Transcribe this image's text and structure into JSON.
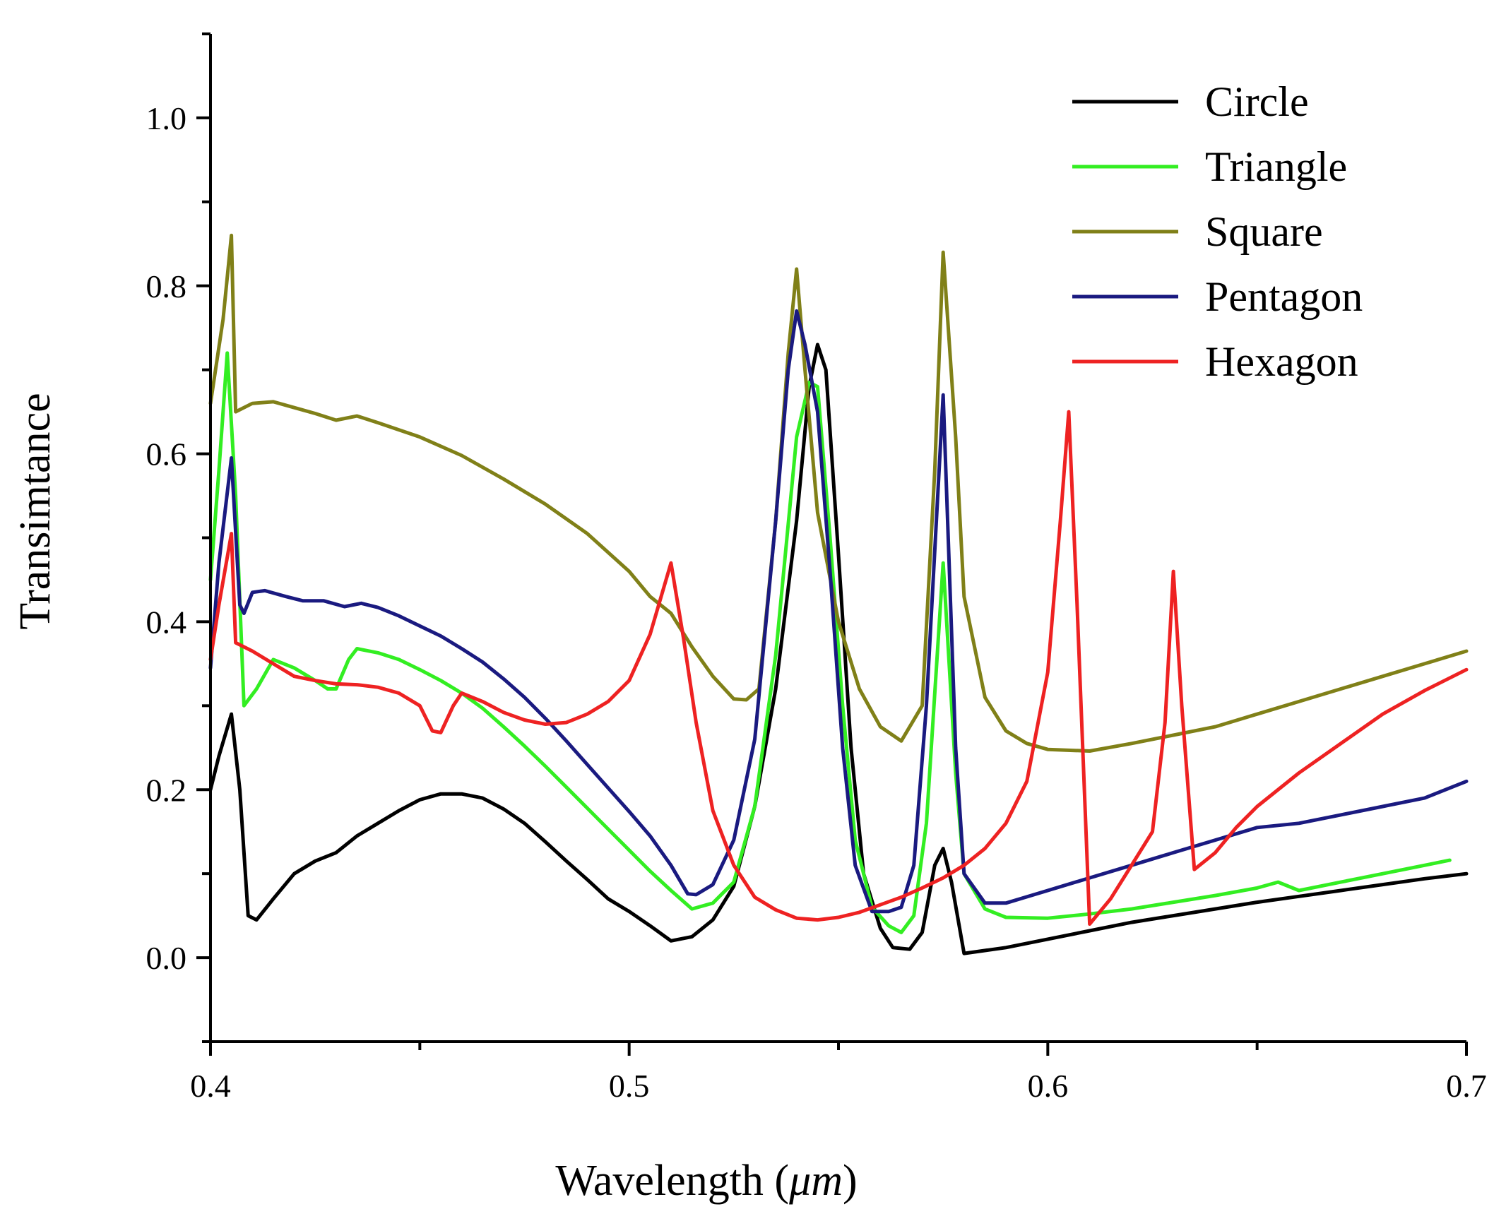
{
  "chart_data": {
    "type": "line",
    "title": "",
    "xlabel_main": "Wavelength (",
    "xlabel_unit": "μm",
    "xlabel_close": ")",
    "ylabel": "Transimtance",
    "xlim": [
      0.4,
      0.7
    ],
    "ylim": [
      -0.1,
      1.1
    ],
    "x_ticks": [
      0.4,
      0.5,
      0.6,
      0.7
    ],
    "x_tick_labels": [
      "0.4",
      "0.5",
      "0.6",
      "0.7"
    ],
    "x_minor_ticks": [
      0.45,
      0.55,
      0.65
    ],
    "y_ticks": [
      0.0,
      0.2,
      0.4,
      0.6,
      0.8,
      1.0
    ],
    "y_tick_labels": [
      "0.0",
      "0.2",
      "0.4",
      "0.6",
      "0.8",
      "1.0"
    ],
    "y_minor_ticks": [
      -0.1,
      0.1,
      0.3,
      0.5,
      0.7,
      0.9,
      1.1
    ],
    "legend_position": "top-right",
    "series": [
      {
        "name": "Circle",
        "color": "#000000",
        "points": [
          [
            0.4,
            0.2
          ],
          [
            0.402,
            0.24
          ],
          [
            0.405,
            0.29
          ],
          [
            0.407,
            0.2
          ],
          [
            0.409,
            0.05
          ],
          [
            0.411,
            0.045
          ],
          [
            0.415,
            0.07
          ],
          [
            0.42,
            0.1
          ],
          [
            0.425,
            0.115
          ],
          [
            0.43,
            0.125
          ],
          [
            0.435,
            0.145
          ],
          [
            0.44,
            0.16
          ],
          [
            0.445,
            0.175
          ],
          [
            0.45,
            0.188
          ],
          [
            0.455,
            0.195
          ],
          [
            0.46,
            0.195
          ],
          [
            0.465,
            0.19
          ],
          [
            0.47,
            0.177
          ],
          [
            0.475,
            0.16
          ],
          [
            0.48,
            0.138
          ],
          [
            0.485,
            0.115
          ],
          [
            0.49,
            0.093
          ],
          [
            0.495,
            0.07
          ],
          [
            0.5,
            0.055
          ],
          [
            0.505,
            0.038
          ],
          [
            0.51,
            0.02
          ],
          [
            0.515,
            0.025
          ],
          [
            0.52,
            0.045
          ],
          [
            0.525,
            0.085
          ],
          [
            0.53,
            0.18
          ],
          [
            0.535,
            0.32
          ],
          [
            0.54,
            0.52
          ],
          [
            0.543,
            0.68
          ],
          [
            0.545,
            0.73
          ],
          [
            0.547,
            0.7
          ],
          [
            0.55,
            0.48
          ],
          [
            0.553,
            0.25
          ],
          [
            0.556,
            0.1
          ],
          [
            0.56,
            0.035
          ],
          [
            0.563,
            0.012
          ],
          [
            0.567,
            0.01
          ],
          [
            0.57,
            0.03
          ],
          [
            0.573,
            0.11
          ],
          [
            0.575,
            0.13
          ],
          [
            0.577,
            0.09
          ],
          [
            0.58,
            0.005
          ],
          [
            0.59,
            0.012
          ],
          [
            0.6,
            0.022
          ],
          [
            0.61,
            0.032
          ],
          [
            0.62,
            0.042
          ],
          [
            0.63,
            0.05
          ],
          [
            0.64,
            0.058
          ],
          [
            0.65,
            0.066
          ],
          [
            0.66,
            0.073
          ],
          [
            0.67,
            0.08
          ],
          [
            0.68,
            0.087
          ],
          [
            0.69,
            0.094
          ],
          [
            0.7,
            0.1
          ]
        ]
      },
      {
        "name": "Triangle",
        "color": "#33ee22",
        "points": [
          [
            0.4,
            0.45
          ],
          [
            0.402,
            0.58
          ],
          [
            0.404,
            0.72
          ],
          [
            0.406,
            0.55
          ],
          [
            0.408,
            0.3
          ],
          [
            0.411,
            0.32
          ],
          [
            0.415,
            0.355
          ],
          [
            0.42,
            0.345
          ],
          [
            0.425,
            0.33
          ],
          [
            0.428,
            0.32
          ],
          [
            0.43,
            0.32
          ],
          [
            0.433,
            0.355
          ],
          [
            0.435,
            0.368
          ],
          [
            0.44,
            0.363
          ],
          [
            0.445,
            0.355
          ],
          [
            0.45,
            0.343
          ],
          [
            0.455,
            0.33
          ],
          [
            0.46,
            0.315
          ],
          [
            0.465,
            0.297
          ],
          [
            0.47,
            0.275
          ],
          [
            0.475,
            0.252
          ],
          [
            0.48,
            0.228
          ],
          [
            0.485,
            0.203
          ],
          [
            0.49,
            0.178
          ],
          [
            0.495,
            0.153
          ],
          [
            0.5,
            0.128
          ],
          [
            0.505,
            0.103
          ],
          [
            0.51,
            0.08
          ],
          [
            0.515,
            0.058
          ],
          [
            0.52,
            0.065
          ],
          [
            0.525,
            0.09
          ],
          [
            0.53,
            0.18
          ],
          [
            0.535,
            0.36
          ],
          [
            0.54,
            0.62
          ],
          [
            0.543,
            0.685
          ],
          [
            0.545,
            0.68
          ],
          [
            0.548,
            0.5
          ],
          [
            0.551,
            0.3
          ],
          [
            0.554,
            0.14
          ],
          [
            0.558,
            0.06
          ],
          [
            0.562,
            0.038
          ],
          [
            0.565,
            0.03
          ],
          [
            0.568,
            0.05
          ],
          [
            0.571,
            0.16
          ],
          [
            0.575,
            0.47
          ],
          [
            0.578,
            0.22
          ],
          [
            0.58,
            0.1
          ],
          [
            0.585,
            0.058
          ],
          [
            0.59,
            0.048
          ],
          [
            0.6,
            0.047
          ],
          [
            0.61,
            0.052
          ],
          [
            0.62,
            0.058
          ],
          [
            0.63,
            0.066
          ],
          [
            0.64,
            0.074
          ],
          [
            0.65,
            0.083
          ],
          [
            0.655,
            0.09
          ],
          [
            0.66,
            0.08
          ],
          [
            0.67,
            0.09
          ],
          [
            0.68,
            0.1
          ],
          [
            0.69,
            0.11
          ],
          [
            0.696,
            0.116
          ]
        ]
      },
      {
        "name": "Square",
        "color": "#808018",
        "points": [
          [
            0.4,
            0.66
          ],
          [
            0.403,
            0.76
          ],
          [
            0.405,
            0.86
          ],
          [
            0.406,
            0.65
          ],
          [
            0.41,
            0.66
          ],
          [
            0.415,
            0.662
          ],
          [
            0.42,
            0.655
          ],
          [
            0.425,
            0.648
          ],
          [
            0.43,
            0.64
          ],
          [
            0.435,
            0.645
          ],
          [
            0.44,
            0.637
          ],
          [
            0.45,
            0.62
          ],
          [
            0.46,
            0.598
          ],
          [
            0.47,
            0.57
          ],
          [
            0.48,
            0.54
          ],
          [
            0.49,
            0.505
          ],
          [
            0.5,
            0.46
          ],
          [
            0.505,
            0.43
          ],
          [
            0.51,
            0.41
          ],
          [
            0.515,
            0.37
          ],
          [
            0.52,
            0.335
          ],
          [
            0.525,
            0.308
          ],
          [
            0.528,
            0.307
          ],
          [
            0.531,
            0.32
          ],
          [
            0.535,
            0.52
          ],
          [
            0.538,
            0.72
          ],
          [
            0.54,
            0.82
          ],
          [
            0.542,
            0.7
          ],
          [
            0.545,
            0.53
          ],
          [
            0.55,
            0.4
          ],
          [
            0.555,
            0.32
          ],
          [
            0.56,
            0.275
          ],
          [
            0.565,
            0.258
          ],
          [
            0.57,
            0.3
          ],
          [
            0.573,
            0.58
          ],
          [
            0.575,
            0.84
          ],
          [
            0.578,
            0.62
          ],
          [
            0.58,
            0.43
          ],
          [
            0.585,
            0.31
          ],
          [
            0.59,
            0.27
          ],
          [
            0.595,
            0.255
          ],
          [
            0.6,
            0.248
          ],
          [
            0.61,
            0.246
          ],
          [
            0.62,
            0.255
          ],
          [
            0.63,
            0.265
          ],
          [
            0.64,
            0.275
          ],
          [
            0.65,
            0.29
          ],
          [
            0.66,
            0.305
          ],
          [
            0.67,
            0.32
          ],
          [
            0.68,
            0.335
          ],
          [
            0.69,
            0.35
          ],
          [
            0.7,
            0.365
          ]
        ]
      },
      {
        "name": "Pentagon",
        "color": "#1a1a80",
        "points": [
          [
            0.4,
            0.345
          ],
          [
            0.402,
            0.47
          ],
          [
            0.405,
            0.595
          ],
          [
            0.407,
            0.42
          ],
          [
            0.408,
            0.41
          ],
          [
            0.41,
            0.435
          ],
          [
            0.413,
            0.437
          ],
          [
            0.418,
            0.43
          ],
          [
            0.422,
            0.425
          ],
          [
            0.427,
            0.425
          ],
          [
            0.432,
            0.418
          ],
          [
            0.436,
            0.422
          ],
          [
            0.44,
            0.417
          ],
          [
            0.445,
            0.407
          ],
          [
            0.45,
            0.395
          ],
          [
            0.455,
            0.383
          ],
          [
            0.46,
            0.368
          ],
          [
            0.465,
            0.352
          ],
          [
            0.47,
            0.332
          ],
          [
            0.475,
            0.31
          ],
          [
            0.48,
            0.285
          ],
          [
            0.485,
            0.258
          ],
          [
            0.49,
            0.23
          ],
          [
            0.495,
            0.202
          ],
          [
            0.5,
            0.174
          ],
          [
            0.505,
            0.145
          ],
          [
            0.51,
            0.11
          ],
          [
            0.514,
            0.076
          ],
          [
            0.516,
            0.075
          ],
          [
            0.52,
            0.087
          ],
          [
            0.525,
            0.14
          ],
          [
            0.53,
            0.26
          ],
          [
            0.535,
            0.52
          ],
          [
            0.538,
            0.7
          ],
          [
            0.54,
            0.77
          ],
          [
            0.542,
            0.73
          ],
          [
            0.545,
            0.65
          ],
          [
            0.548,
            0.46
          ],
          [
            0.551,
            0.25
          ],
          [
            0.554,
            0.11
          ],
          [
            0.558,
            0.055
          ],
          [
            0.562,
            0.055
          ],
          [
            0.565,
            0.06
          ],
          [
            0.568,
            0.11
          ],
          [
            0.571,
            0.3
          ],
          [
            0.575,
            0.67
          ],
          [
            0.578,
            0.25
          ],
          [
            0.58,
            0.1
          ],
          [
            0.585,
            0.065
          ],
          [
            0.59,
            0.065
          ],
          [
            0.6,
            0.08
          ],
          [
            0.61,
            0.095
          ],
          [
            0.62,
            0.11
          ],
          [
            0.63,
            0.125
          ],
          [
            0.64,
            0.14
          ],
          [
            0.65,
            0.155
          ],
          [
            0.66,
            0.16
          ],
          [
            0.67,
            0.17
          ],
          [
            0.68,
            0.18
          ],
          [
            0.69,
            0.19
          ],
          [
            0.7,
            0.21
          ]
        ]
      },
      {
        "name": "Hexagon",
        "color": "#ee2222",
        "points": [
          [
            0.4,
            0.355
          ],
          [
            0.402,
            0.42
          ],
          [
            0.405,
            0.505
          ],
          [
            0.406,
            0.375
          ],
          [
            0.41,
            0.365
          ],
          [
            0.415,
            0.35
          ],
          [
            0.42,
            0.335
          ],
          [
            0.425,
            0.33
          ],
          [
            0.43,
            0.326
          ],
          [
            0.435,
            0.325
          ],
          [
            0.44,
            0.322
          ],
          [
            0.445,
            0.315
          ],
          [
            0.45,
            0.3
          ],
          [
            0.453,
            0.27
          ],
          [
            0.455,
            0.268
          ],
          [
            0.458,
            0.3
          ],
          [
            0.46,
            0.315
          ],
          [
            0.465,
            0.305
          ],
          [
            0.47,
            0.292
          ],
          [
            0.475,
            0.283
          ],
          [
            0.48,
            0.278
          ],
          [
            0.485,
            0.28
          ],
          [
            0.49,
            0.29
          ],
          [
            0.495,
            0.305
          ],
          [
            0.5,
            0.33
          ],
          [
            0.505,
            0.385
          ],
          [
            0.51,
            0.47
          ],
          [
            0.513,
            0.38
          ],
          [
            0.516,
            0.28
          ],
          [
            0.52,
            0.175
          ],
          [
            0.525,
            0.11
          ],
          [
            0.53,
            0.072
          ],
          [
            0.535,
            0.057
          ],
          [
            0.54,
            0.047
          ],
          [
            0.545,
            0.045
          ],
          [
            0.55,
            0.048
          ],
          [
            0.555,
            0.054
          ],
          [
            0.56,
            0.063
          ],
          [
            0.565,
            0.072
          ],
          [
            0.57,
            0.083
          ],
          [
            0.575,
            0.095
          ],
          [
            0.58,
            0.11
          ],
          [
            0.585,
            0.13
          ],
          [
            0.59,
            0.16
          ],
          [
            0.595,
            0.21
          ],
          [
            0.6,
            0.34
          ],
          [
            0.603,
            0.52
          ],
          [
            0.605,
            0.65
          ],
          [
            0.607,
            0.42
          ],
          [
            0.61,
            0.04
          ],
          [
            0.615,
            0.07
          ],
          [
            0.62,
            0.11
          ],
          [
            0.625,
            0.15
          ],
          [
            0.628,
            0.28
          ],
          [
            0.63,
            0.46
          ],
          [
            0.632,
            0.3
          ],
          [
            0.635,
            0.105
          ],
          [
            0.64,
            0.125
          ],
          [
            0.645,
            0.155
          ],
          [
            0.65,
            0.18
          ],
          [
            0.66,
            0.22
          ],
          [
            0.67,
            0.255
          ],
          [
            0.68,
            0.29
          ],
          [
            0.69,
            0.318
          ],
          [
            0.7,
            0.343
          ]
        ]
      }
    ]
  }
}
